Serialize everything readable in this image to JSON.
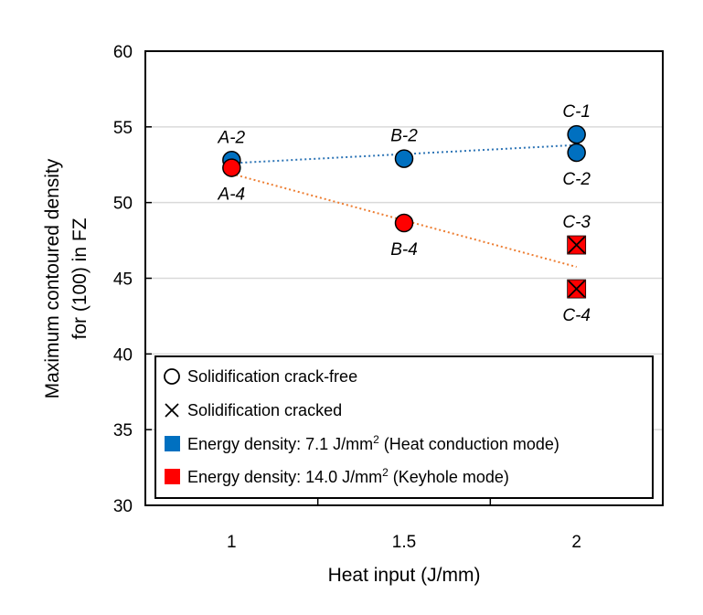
{
  "chart_data": {
    "type": "scatter",
    "title": "",
    "xlabel": "Heat input (J/mm)",
    "ylabel_lines": [
      "Maximum contoured density",
      "for (100) in FZ"
    ],
    "xlim": [
      0.75,
      2.25
    ],
    "ylim": [
      30,
      60
    ],
    "xticks": [
      1,
      1.5,
      2
    ],
    "xtick_labels": [
      "1",
      "1.5",
      "2"
    ],
    "yticks": [
      30,
      35,
      40,
      45,
      50,
      55,
      60
    ],
    "ytick_labels": [
      "30",
      "35",
      "40",
      "45",
      "50",
      "55",
      "60"
    ],
    "grid": "horizontal",
    "colors": {
      "heat_conduction": "#0070C0",
      "keyhole": "#FF0000",
      "trend_blue": "#2E75B6",
      "trend_orange": "#ED7D31",
      "grid": "#D9D9D9"
    },
    "series": [
      {
        "name": "Energy density: 7.1 J/mm² (Heat conduction mode)",
        "color_key": "heat_conduction",
        "points": [
          {
            "label": "A-2",
            "x": 1,
            "y": 52.8,
            "marker": "circle",
            "label_pos": "above"
          },
          {
            "label": "B-2",
            "x": 1.5,
            "y": 52.9,
            "marker": "circle",
            "label_pos": "above"
          },
          {
            "label": "C-1",
            "x": 2,
            "y": 54.5,
            "marker": "circle",
            "label_pos": "above"
          },
          {
            "label": "C-2",
            "x": 2,
            "y": 53.3,
            "marker": "circle",
            "label_pos": "below"
          }
        ],
        "trendline": {
          "x": [
            1,
            2
          ],
          "y": [
            52.6,
            53.8
          ],
          "color_key": "trend_blue"
        }
      },
      {
        "name": "Energy density: 14.0 J/mm² (Keyhole mode)",
        "color_key": "keyhole",
        "points": [
          {
            "label": "A-4",
            "x": 1,
            "y": 52.3,
            "marker": "circle",
            "label_pos": "below"
          },
          {
            "label": "B-4",
            "x": 1.5,
            "y": 48.65,
            "marker": "circle",
            "label_pos": "below"
          },
          {
            "label": "C-3",
            "x": 2,
            "y": 47.2,
            "marker": "cross-square",
            "label_pos": "above"
          },
          {
            "label": "C-4",
            "x": 2,
            "y": 44.3,
            "marker": "cross-square",
            "label_pos": "below"
          }
        ],
        "trendline": {
          "x": [
            1,
            2
          ],
          "y": [
            51.9,
            45.75
          ],
          "color_key": "trend_orange"
        }
      }
    ],
    "legend": {
      "placement": "bottom-inside",
      "entries": [
        {
          "symbol": "open-circle",
          "text": "Solidification crack-free"
        },
        {
          "symbol": "x",
          "text": "Solidification cracked"
        },
        {
          "symbol": "blue-square",
          "text_main": "Energy density: 7.1 J/mm",
          "sup": "2",
          "text_after": " (Heat conduction mode)"
        },
        {
          "symbol": "red-square",
          "text_main": "Energy density: 14.0 J/mm",
          "sup": "2",
          "text_after": " (Keyhole mode)"
        }
      ]
    }
  }
}
